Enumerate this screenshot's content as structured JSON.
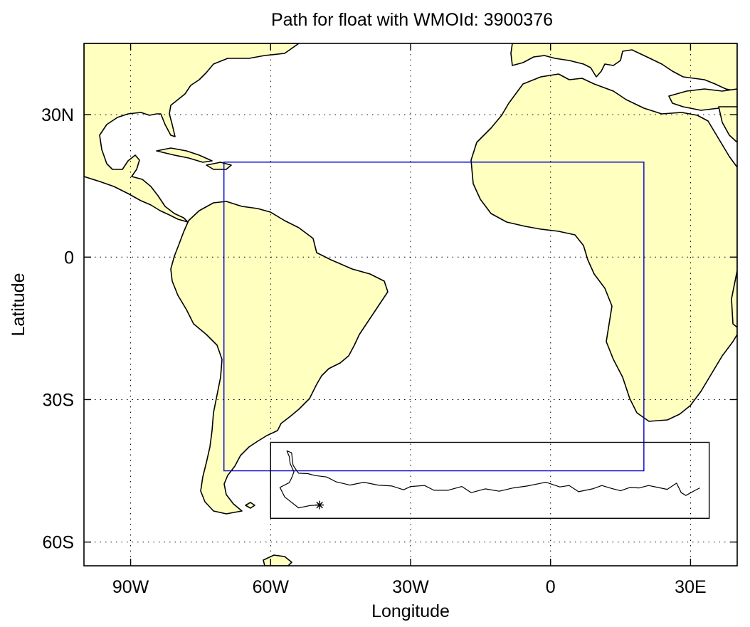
{
  "title": "Path for float with WMOId: 3900376",
  "axes": {
    "xlabel": "Longitude",
    "ylabel": "Latitude",
    "x_ticks": [
      {
        "value": -90,
        "label": "90W"
      },
      {
        "value": -60,
        "label": "60W"
      },
      {
        "value": -30,
        "label": "30W"
      },
      {
        "value": 0,
        "label": "0"
      },
      {
        "value": 30,
        "label": "30E"
      }
    ],
    "y_ticks": [
      {
        "value": 30,
        "label": "30N"
      },
      {
        "value": 0,
        "label": "0"
      },
      {
        "value": -30,
        "label": "30S"
      },
      {
        "value": -60,
        "label": "60S"
      }
    ],
    "xlim": [
      -100,
      40
    ],
    "ylim": [
      -65,
      45
    ],
    "grid": "on"
  },
  "colors": {
    "land": "#ffffc0",
    "coast": "#000000",
    "region_box": "#0000cc",
    "path_box": "#000000",
    "path": "#000000"
  },
  "region_box": {
    "lon": [
      -70,
      20
    ],
    "lat": [
      -45,
      20
    ]
  },
  "path_box": {
    "lon": [
      -60,
      34
    ],
    "lat": [
      -55,
      -39
    ]
  },
  "float_path": {
    "start_marker": "asterisk",
    "points": [
      [
        -49.5,
        -52.2
      ],
      [
        -51.5,
        -52.3
      ],
      [
        -54,
        -52.8
      ],
      [
        -57,
        -50.5
      ],
      [
        -58,
        -48.5
      ],
      [
        -56,
        -47.5
      ],
      [
        -55.5,
        -46.5
      ],
      [
        -55,
        -45.2
      ],
      [
        -55.8,
        -43.5
      ],
      [
        -56,
        -42
      ],
      [
        -56.5,
        -40.8
      ],
      [
        -55.5,
        -41.2
      ],
      [
        -55.2,
        -43.8
      ],
      [
        -54.6,
        -44.7
      ],
      [
        -54,
        -45.5
      ],
      [
        -52,
        -45.6
      ],
      [
        -50.5,
        -46
      ],
      [
        -48,
        -46.3
      ],
      [
        -46,
        -47.3
      ],
      [
        -43,
        -48
      ],
      [
        -40,
        -47.4
      ],
      [
        -37,
        -48
      ],
      [
        -34,
        -48.2
      ],
      [
        -31.5,
        -49
      ],
      [
        -30,
        -48.3
      ],
      [
        -27,
        -48.1
      ],
      [
        -25,
        -49.1
      ],
      [
        -22,
        -49.1
      ],
      [
        -19,
        -48.3
      ],
      [
        -17,
        -49.6
      ],
      [
        -14,
        -48.8
      ],
      [
        -11,
        -49.3
      ],
      [
        -8,
        -48.6
      ],
      [
        -5,
        -48.2
      ],
      [
        -1,
        -47.4
      ],
      [
        2,
        -48.4
      ],
      [
        4,
        -48.1
      ],
      [
        6,
        -49.4
      ],
      [
        9,
        -48.8
      ],
      [
        11,
        -48.1
      ],
      [
        13,
        -48.7
      ],
      [
        15,
        -49.2
      ],
      [
        17,
        -48.5
      ],
      [
        19,
        -48.6
      ],
      [
        21,
        -48.1
      ],
      [
        23,
        -48.5
      ],
      [
        25,
        -48.9
      ],
      [
        27,
        -47.6
      ],
      [
        28,
        -49.6
      ],
      [
        29,
        -50.2
      ],
      [
        31,
        -49.1
      ],
      [
        32,
        -48.6
      ]
    ]
  }
}
